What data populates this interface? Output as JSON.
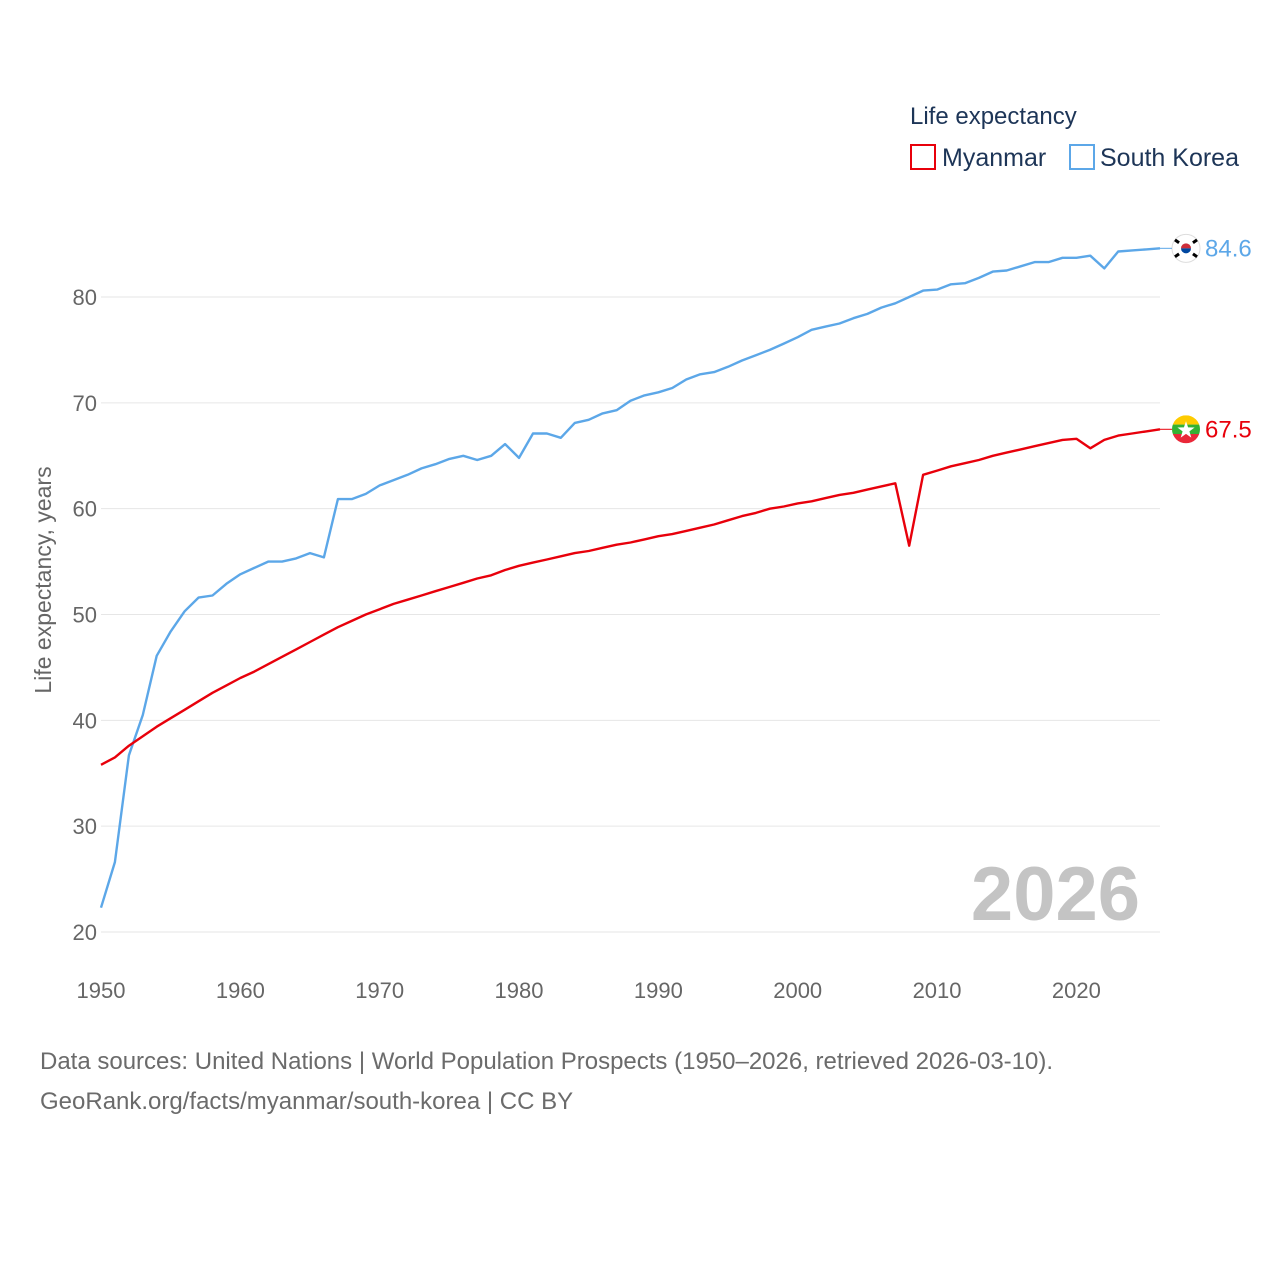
{
  "chart_data": {
    "type": "line",
    "xlabel": "",
    "ylabel": "Life expectancy, years",
    "xlim": [
      1950,
      2026
    ],
    "ylim": [
      20,
      87
    ],
    "x_ticks": [
      1950,
      1960,
      1970,
      1980,
      1990,
      2000,
      2010,
      2020
    ],
    "y_ticks": [
      20,
      30,
      40,
      50,
      60,
      70,
      80
    ],
    "grid": true,
    "legend": {
      "title": "Life expectancy",
      "placement": "top-right",
      "entries": [
        {
          "name": "Myanmar",
          "color": "#e8000b"
        },
        {
          "name": "South Korea",
          "color": "#5ca7e8"
        }
      ]
    },
    "watermark_year": "2026",
    "series": [
      {
        "name": "South Korea",
        "color": "#5ca7e8",
        "end_label": "84.6",
        "flag_icon": "south-korea-flag-icon",
        "x": [
          1950,
          1951,
          1952,
          1953,
          1954,
          1955,
          1956,
          1957,
          1958,
          1959,
          1960,
          1961,
          1962,
          1963,
          1964,
          1965,
          1966,
          1967,
          1968,
          1969,
          1970,
          1971,
          1972,
          1973,
          1974,
          1975,
          1976,
          1977,
          1978,
          1979,
          1980,
          1981,
          1982,
          1983,
          1984,
          1985,
          1986,
          1987,
          1988,
          1989,
          1990,
          1991,
          1992,
          1993,
          1994,
          1995,
          1996,
          1997,
          1998,
          1999,
          2000,
          2001,
          2002,
          2003,
          2004,
          2005,
          2006,
          2007,
          2008,
          2009,
          2010,
          2011,
          2012,
          2013,
          2014,
          2015,
          2016,
          2017,
          2018,
          2019,
          2020,
          2021,
          2022,
          2023,
          2024,
          2025,
          2026
        ],
        "values": [
          22.3,
          26.6,
          36.7,
          40.5,
          46.1,
          48.4,
          50.3,
          51.6,
          51.8,
          52.9,
          53.8,
          54.4,
          55.0,
          55.0,
          55.3,
          55.8,
          55.4,
          60.9,
          60.9,
          61.4,
          62.2,
          62.7,
          63.2,
          63.8,
          64.2,
          64.7,
          65.0,
          64.6,
          65.0,
          66.1,
          64.8,
          67.1,
          67.1,
          66.7,
          68.1,
          68.4,
          69.0,
          69.3,
          70.2,
          70.7,
          71.0,
          71.4,
          72.2,
          72.7,
          72.9,
          73.4,
          74.0,
          74.5,
          75.0,
          75.6,
          76.2,
          76.9,
          77.2,
          77.5,
          78.0,
          78.4,
          79.0,
          79.4,
          80.0,
          80.6,
          80.7,
          81.2,
          81.3,
          81.8,
          82.4,
          82.5,
          82.9,
          83.3,
          83.3,
          83.7,
          83.7,
          83.9,
          82.7,
          84.3,
          84.4,
          84.5,
          84.6
        ]
      },
      {
        "name": "Myanmar",
        "color": "#e8000b",
        "end_label": "67.5",
        "flag_icon": "myanmar-flag-icon",
        "x": [
          1950,
          1951,
          1952,
          1953,
          1954,
          1955,
          1956,
          1957,
          1958,
          1959,
          1960,
          1961,
          1962,
          1963,
          1964,
          1965,
          1966,
          1967,
          1968,
          1969,
          1970,
          1971,
          1972,
          1973,
          1974,
          1975,
          1976,
          1977,
          1978,
          1979,
          1980,
          1981,
          1982,
          1983,
          1984,
          1985,
          1986,
          1987,
          1988,
          1989,
          1990,
          1991,
          1992,
          1993,
          1994,
          1995,
          1996,
          1997,
          1998,
          1999,
          2000,
          2001,
          2002,
          2003,
          2004,
          2005,
          2006,
          2007,
          2008,
          2009,
          2010,
          2011,
          2012,
          2013,
          2014,
          2015,
          2016,
          2017,
          2018,
          2019,
          2020,
          2021,
          2022,
          2023,
          2024,
          2025,
          2026
        ],
        "values": [
          35.8,
          36.5,
          37.6,
          38.5,
          39.4,
          40.2,
          41.0,
          41.8,
          42.6,
          43.3,
          44.0,
          44.6,
          45.3,
          46.0,
          46.7,
          47.4,
          48.1,
          48.8,
          49.4,
          50.0,
          50.5,
          51.0,
          51.4,
          51.8,
          52.2,
          52.6,
          53.0,
          53.4,
          53.7,
          54.2,
          54.6,
          54.9,
          55.2,
          55.5,
          55.8,
          56.0,
          56.3,
          56.6,
          56.8,
          57.1,
          57.4,
          57.6,
          57.9,
          58.2,
          58.5,
          58.9,
          59.3,
          59.6,
          60.0,
          60.2,
          60.5,
          60.7,
          61.0,
          61.3,
          61.5,
          61.8,
          62.1,
          62.4,
          56.5,
          63.2,
          63.6,
          64.0,
          64.3,
          64.6,
          65.0,
          65.3,
          65.6,
          65.9,
          66.2,
          66.5,
          66.6,
          65.7,
          66.5,
          66.9,
          67.1,
          67.3,
          67.5
        ]
      }
    ]
  },
  "footer": {
    "source_line": "Data sources: United Nations | World Population Prospects (1950–2026, retrieved 2026-03-10).",
    "attribution_line": "GeoRank.org/facts/myanmar/south-korea | CC BY"
  }
}
